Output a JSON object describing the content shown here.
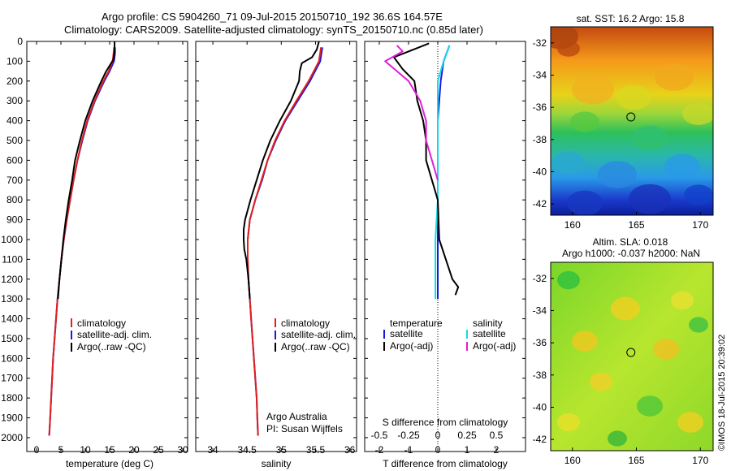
{
  "title": {
    "line1": "Argo profile: CS 5904260_71 09-Jul-2015 20150710_192 36.6S 164.57E",
    "line2": "Climatology: CARS2009. Satellite-adjusted climatology: synTS_20150710.nc (0.85d later)"
  },
  "colors": {
    "climatology": "#e0201b",
    "satellite": "#1a1adf",
    "argo": "#000000",
    "sal_satellite": "#14d8e6",
    "sal_argo": "#e020d8"
  },
  "depth_axis": {
    "ticks": [
      "0",
      "100",
      "200",
      "300",
      "400",
      "500",
      "600",
      "700",
      "800",
      "900",
      "1000",
      "1100",
      "1200",
      "1300",
      "1400",
      "1500",
      "1600",
      "1700",
      "1800",
      "1900",
      "2000"
    ]
  },
  "chart_data": [
    {
      "type": "line",
      "name": "temperature-profile",
      "xlabel": "temperature (deg C)",
      "xlim": [
        -2,
        31
      ],
      "xticks": [
        "0",
        "5",
        "10",
        "15",
        "20",
        "25",
        "30"
      ],
      "ylim": [
        0,
        2070
      ],
      "legend": [
        "climatology",
        "satellite-adj. clim.",
        "Argo(..raw -QC)"
      ],
      "series": [
        {
          "name": "satellite-adj. clim.",
          "depth": [
            30,
            60,
            100,
            150,
            200,
            300,
            400,
            500,
            600,
            700,
            800,
            900,
            1000,
            1100,
            1200,
            1300,
            1400,
            1500,
            1600,
            1700,
            1800,
            1900,
            1990
          ],
          "values": [
            16.1,
            16.1,
            15.9,
            15.0,
            13.9,
            12.0,
            10.5,
            9.4,
            8.4,
            7.6,
            6.9,
            6.2,
            5.6,
            5.1,
            4.7,
            4.3,
            4.0,
            3.7,
            3.4,
            3.2,
            3.0,
            2.8,
            2.6
          ]
        },
        {
          "name": "climatology",
          "depth": [
            30,
            60,
            100,
            150,
            200,
            300,
            400,
            500,
            600,
            700,
            800,
            900,
            1000,
            1100,
            1200,
            1300,
            1400,
            1500,
            1600,
            1700,
            1800,
            1900,
            1990
          ],
          "values": [
            15.9,
            15.8,
            15.6,
            14.8,
            13.7,
            11.9,
            10.4,
            9.3,
            8.4,
            7.6,
            6.9,
            6.2,
            5.6,
            5.1,
            4.7,
            4.3,
            4.0,
            3.7,
            3.4,
            3.2,
            3.0,
            2.8,
            2.6
          ]
        },
        {
          "name": "Argo(..raw -QC)",
          "depth": [
            0,
            50,
            90,
            150,
            200,
            300,
            400,
            500,
            600,
            700,
            800,
            900,
            1000,
            1100,
            1200,
            1300
          ],
          "values": [
            16.0,
            16.0,
            15.8,
            14.3,
            13.3,
            11.5,
            10.0,
            8.9,
            7.9,
            7.3,
            6.6,
            6.0,
            5.5,
            5.1,
            4.7,
            4.4
          ]
        }
      ]
    },
    {
      "type": "line",
      "name": "salinity-profile",
      "xlabel": "salinity",
      "xlim": [
        33.75,
        36.1
      ],
      "xticks": [
        "34",
        "34.5",
        "35",
        "35.5",
        "36"
      ],
      "ylim": [
        0,
        2070
      ],
      "legend": [
        "climatology",
        "satellite-adj. clim.",
        "Argo(..raw -QC)"
      ],
      "annotation": [
        "Argo Australia",
        "PI: Susan Wijffels"
      ],
      "series": [
        {
          "name": "satellite-adj. clim.",
          "depth": [
            30,
            100,
            200,
            300,
            400,
            500,
            600,
            700,
            800,
            900,
            1000,
            1100,
            1200,
            1300,
            1400,
            1500,
            1600,
            1700,
            1800,
            1900,
            1990
          ],
          "values": [
            35.6,
            35.57,
            35.42,
            35.24,
            35.06,
            34.92,
            34.8,
            34.72,
            34.62,
            34.54,
            34.51,
            34.51,
            34.52,
            34.54,
            34.56,
            34.58,
            34.6,
            34.62,
            34.64,
            34.65,
            34.66
          ]
        },
        {
          "name": "climatology",
          "depth": [
            30,
            100,
            200,
            300,
            400,
            500,
            600,
            700,
            800,
            900,
            1000,
            1100,
            1200,
            1300,
            1400,
            1500,
            1600,
            1700,
            1800,
            1900,
            1990
          ],
          "values": [
            35.58,
            35.55,
            35.4,
            35.22,
            35.05,
            34.91,
            34.8,
            34.71,
            34.62,
            34.54,
            34.51,
            34.51,
            34.52,
            34.54,
            34.56,
            34.58,
            34.6,
            34.62,
            34.64,
            34.65,
            34.66
          ]
        },
        {
          "name": "Argo(..raw -QC)",
          "depth": [
            0,
            40,
            80,
            110,
            150,
            200,
            300,
            400,
            500,
            600,
            700,
            800,
            900,
            950,
            1000,
            1050,
            1100,
            1200,
            1300
          ],
          "values": [
            35.55,
            35.52,
            35.45,
            35.3,
            35.27,
            35.26,
            35.14,
            34.98,
            34.84,
            34.73,
            34.64,
            34.55,
            34.47,
            34.45,
            34.45,
            34.46,
            34.49,
            34.52,
            34.54
          ]
        }
      ]
    },
    {
      "type": "line",
      "name": "difference-profile",
      "xlabel": "T difference from climatology",
      "top_label": "S difference from climatology",
      "xlim": [
        -2.5,
        3
      ],
      "xticks": [
        "-2",
        "-1",
        "0",
        "1",
        "2"
      ],
      "sticks": [
        "-0.5",
        "-0.25",
        "0",
        "0.25",
        "0.5"
      ],
      "ylim": [
        0,
        2070
      ],
      "legend": {
        "temperature_header": "temperature",
        "salinity_header": "salinity",
        "temperature": [
          "satellite",
          "Argo(-adj)"
        ],
        "salinity": [
          "satellite",
          "Argo(-adj)"
        ]
      },
      "series": [
        {
          "name": "temperature satellite",
          "depth": [
            20,
            100,
            200,
            400,
            600,
            800,
            1000,
            1200,
            1300
          ],
          "values": [
            0.4,
            0.2,
            0.1,
            0.0,
            0.0,
            0.0,
            0.0,
            0.0,
            0.0
          ]
        },
        {
          "name": "salinity satellite",
          "depth": [
            20,
            100,
            200,
            400,
            600,
            800,
            1000,
            1200,
            1300
          ],
          "values": [
            0.1,
            0.05,
            0.0,
            0.0,
            0.0,
            0.0,
            -0.02,
            -0.02,
            -0.02
          ]
        },
        {
          "name": "temperature Argo(-adj)",
          "depth": [
            10,
            80,
            140,
            200,
            300,
            400,
            500,
            600,
            700,
            800,
            1000,
            1200,
            1240,
            1280
          ],
          "values": [
            -0.3,
            -1.5,
            -1.2,
            -0.8,
            -0.7,
            -0.5,
            -0.4,
            -0.4,
            -0.2,
            0.0,
            0.05,
            0.5,
            0.7,
            0.6
          ]
        },
        {
          "name": "salinity Argo(-adj)",
          "depth": [
            20,
            50,
            100,
            200,
            300,
            400,
            500,
            600,
            700
          ],
          "values": [
            -0.35,
            -0.3,
            -0.45,
            -0.25,
            -0.15,
            -0.1,
            -0.1,
            -0.05,
            0.0
          ]
        }
      ]
    }
  ],
  "maps": [
    {
      "name": "sst-map",
      "title": "sat. SST: 16.2 Argo: 15.8",
      "yticks": [
        "-32",
        "-34",
        "-36",
        "-38",
        "-40",
        "-42"
      ],
      "xticks": [
        "160",
        "165",
        "170"
      ],
      "marker": {
        "lon": 164.57,
        "lat": -36.6
      }
    },
    {
      "name": "sla-map",
      "title_line1": "Altim. SLA: 0.018",
      "title_line2": "Argo h1000: -0.037 h2000: NaN",
      "yticks": [
        "-32",
        "-34",
        "-36",
        "-38",
        "-40",
        "-42"
      ],
      "xticks": [
        "160",
        "165",
        "170"
      ],
      "marker": {
        "lon": 164.57,
        "lat": -36.6
      }
    }
  ],
  "footer_stamp": "©IMOS 18-Jul-2015 20:39:02"
}
